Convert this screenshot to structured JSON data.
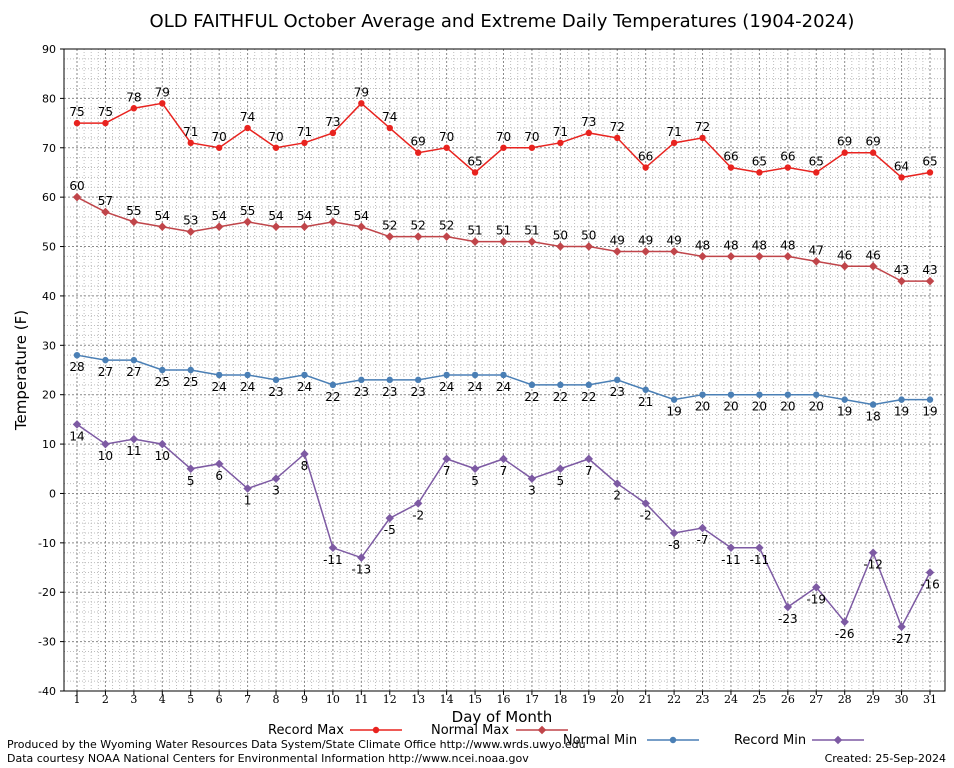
{
  "chart_data": {
    "type": "line",
    "title": "OLD FAITHFUL October Average and Extreme Daily Temperatures (1904-2024)",
    "xlabel": "Day of Month",
    "ylabel": "Temperature (F)",
    "ylim": [
      -40,
      90
    ],
    "yticks": [
      "-40",
      "-30",
      "-20",
      "-10",
      "0",
      "10",
      "20",
      "30",
      "40",
      "50",
      "60",
      "70",
      "80",
      "90"
    ],
    "x": [
      "1",
      "2",
      "3",
      "4",
      "5",
      "6",
      "7",
      "8",
      "9",
      "10",
      "11",
      "12",
      "13",
      "14",
      "15",
      "16",
      "17",
      "18",
      "19",
      "20",
      "21",
      "22",
      "23",
      "24",
      "25",
      "26",
      "27",
      "28",
      "29",
      "30",
      "31"
    ],
    "grid": true,
    "legend": "bottom",
    "series": [
      {
        "name": "Record Max",
        "color": "#e8231f",
        "labels": "above",
        "values": [
          75,
          75,
          78,
          79,
          71,
          70,
          74,
          70,
          71,
          73,
          79,
          74,
          69,
          70,
          65,
          70,
          70,
          71,
          73,
          72,
          66,
          71,
          72,
          66,
          65,
          66,
          65,
          69,
          69,
          64,
          65
        ]
      },
      {
        "name": "Normal Max",
        "color": "#c0454a",
        "labels": "above",
        "values": [
          60,
          57,
          55,
          54,
          53,
          54,
          55,
          54,
          54,
          55,
          54,
          52,
          52,
          52,
          51,
          51,
          51,
          50,
          50,
          49,
          49,
          49,
          48,
          48,
          48,
          48,
          47,
          46,
          46,
          43,
          43
        ]
      },
      {
        "name": "Normal Min",
        "color": "#4a7fb5",
        "labels": "below",
        "values": [
          28,
          27,
          27,
          25,
          25,
          24,
          24,
          23,
          24,
          22,
          23,
          23,
          23,
          24,
          24,
          24,
          22,
          22,
          22,
          23,
          21,
          19,
          20,
          20,
          20,
          20,
          20,
          19,
          18,
          19,
          19
        ]
      },
      {
        "name": "Record Min",
        "color": "#7d5aa3",
        "labels": "below",
        "values": [
          14,
          10,
          11,
          10,
          5,
          6,
          1,
          3,
          8,
          -11,
          -13,
          -5,
          -2,
          7,
          5,
          7,
          3,
          5,
          7,
          2,
          -2,
          -8,
          -7,
          -11,
          -11,
          -23,
          -19,
          -26,
          -12,
          -27,
          -16
        ]
      }
    ]
  },
  "footer": {
    "producer": "Produced by the Wyoming Water Resources Data System/State Climate Office http://www.wrds.uwyo.edu",
    "courtesy": "Data courtesy NOAA National Centers for Environmental Information http://www.ncei.noaa.gov",
    "created": "Created:  25-Sep-2024"
  }
}
